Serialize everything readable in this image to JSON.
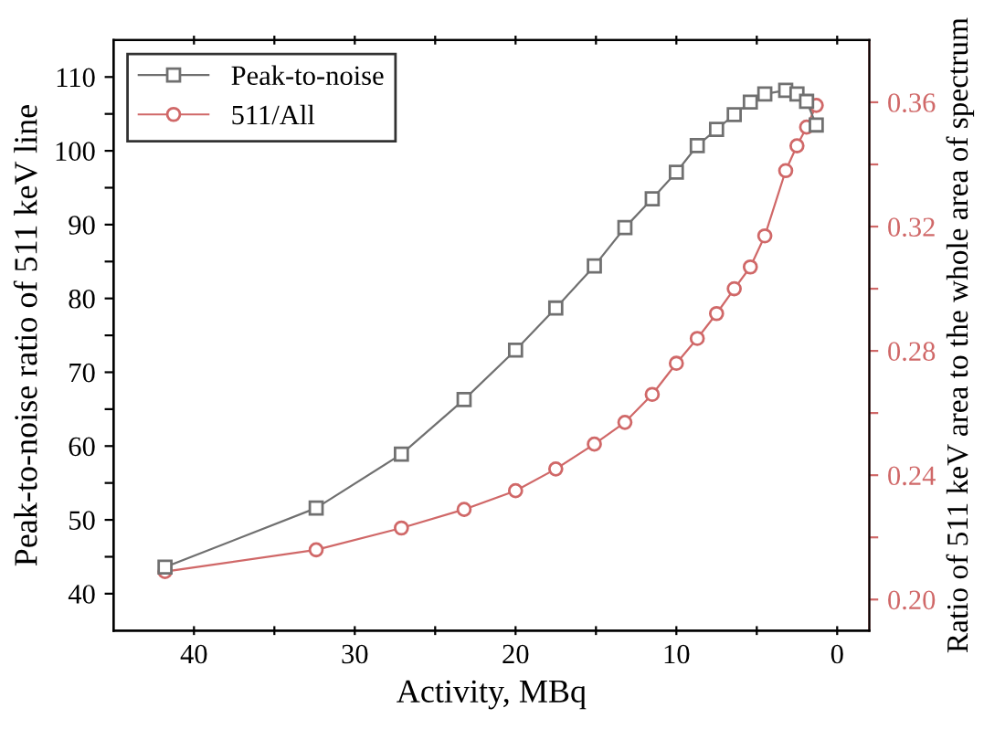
{
  "chart_data": {
    "type": "line",
    "xlabel": "Activity, MBq",
    "ylabel": "Peak-to-noise ratio of 511 keV line",
    "y2label": "Ratio of 511 keV area to the whole area of spectrum",
    "xlim": [
      45,
      -2
    ],
    "xticks": [
      40,
      {
        "value": 35,
        "label": null
      },
      30,
      {
        "value": 25,
        "label": null
      },
      20,
      {
        "value": 15,
        "label": null
      },
      10,
      {
        "value": 5,
        "label": null
      },
      0
    ],
    "ylim": [
      35,
      115
    ],
    "yticks": [
      40,
      {
        "value": 45,
        "label": null
      },
      50,
      {
        "value": 55,
        "label": null
      },
      60,
      {
        "value": 65,
        "label": null
      },
      70,
      {
        "value": 75,
        "label": null
      },
      80,
      {
        "value": 85,
        "label": null
      },
      90,
      {
        "value": 95,
        "label": null
      },
      100,
      {
        "value": 105,
        "label": null
      },
      110
    ],
    "y2lim": [
      0.19,
      0.38
    ],
    "y2ticks": [
      {
        "value": 0.2,
        "label": "0.20"
      },
      {
        "value": 0.22,
        "label": null
      },
      0.24,
      {
        "value": 0.26,
        "label": null
      },
      0.28,
      {
        "value": 0.3,
        "label": null
      },
      0.32,
      {
        "value": 0.34,
        "label": null
      },
      0.36
    ],
    "legend": "top left",
    "grid": false,
    "series": [
      {
        "name": "Peak-to-noise",
        "color": "#707070",
        "marker": "square",
        "x": [
          41.8,
          32.4,
          27.1,
          23.2,
          20.0,
          17.5,
          15.1,
          13.2,
          11.5,
          10.0,
          8.7,
          7.5,
          6.4,
          5.4,
          4.5,
          3.2,
          2.5,
          1.9,
          1.3
        ],
        "values": [
          43.6,
          51.6,
          58.9,
          66.3,
          73.0,
          78.7,
          84.4,
          89.6,
          93.5,
          97.1,
          100.7,
          102.9,
          104.9,
          106.6,
          107.7,
          108.2,
          107.7,
          106.7,
          103.5
        ]
      },
      {
        "name": "511/All",
        "color": "#d06868",
        "marker": "circle",
        "axis": "y2",
        "x": [
          41.8,
          32.4,
          27.1,
          23.2,
          20.0,
          17.5,
          15.1,
          13.2,
          11.5,
          10.0,
          8.7,
          7.5,
          6.4,
          5.4,
          4.5,
          3.2,
          2.5,
          1.9,
          1.3
        ],
        "values": [
          0.209,
          0.216,
          0.223,
          0.229,
          0.235,
          0.242,
          0.25,
          0.257,
          0.266,
          0.276,
          0.284,
          0.292,
          0.3,
          0.307,
          0.317,
          0.338,
          0.346,
          0.352,
          0.359
        ]
      }
    ]
  }
}
